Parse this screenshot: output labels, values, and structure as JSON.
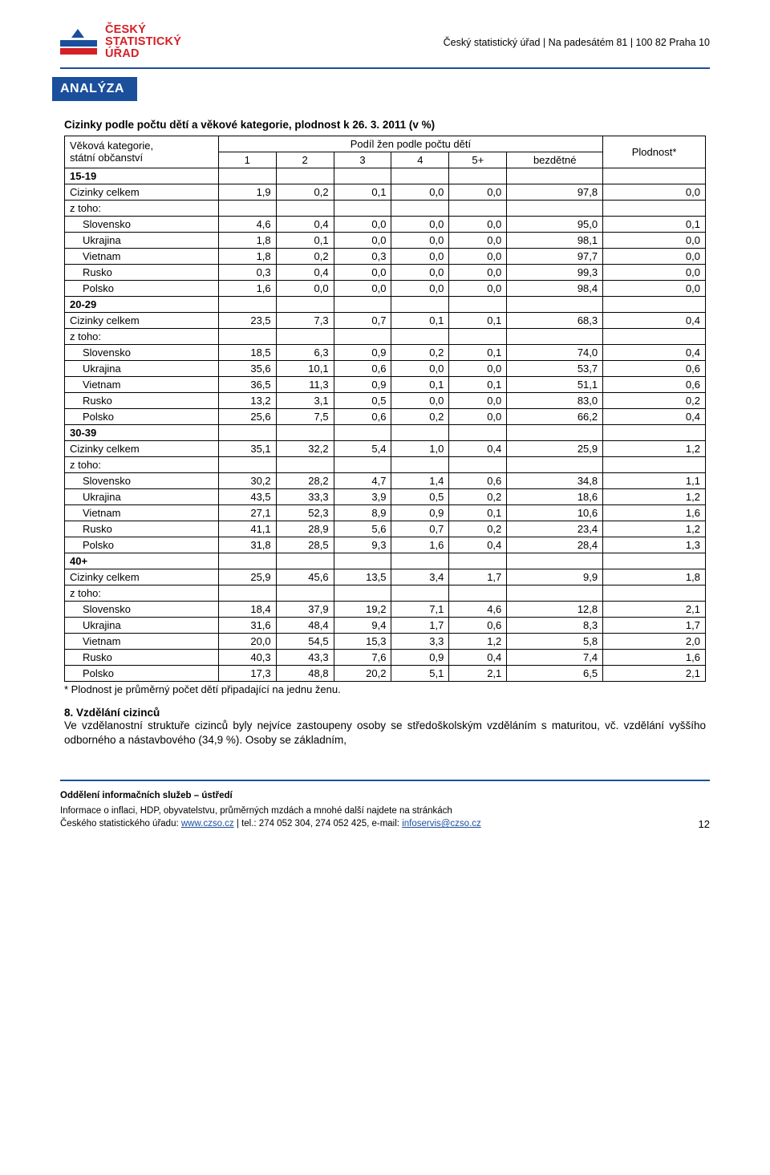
{
  "header": {
    "org_address": "Český statistický úřad | Na padesátém 81 | 100 82 Praha 10",
    "logo_line1": "ČESKÝ",
    "logo_line2": "STATISTICKÝ",
    "logo_line3": "ÚŘAD",
    "tag": "ANALÝZA",
    "logo_colors": {
      "blue": "#1b4f9c",
      "red": "#d42027"
    }
  },
  "table": {
    "title": "Cizinky podle počtu dětí a věkové kategorie, plodnost k 26. 3. 2011 (v %)",
    "header_rowcol": "Věková kategorie,\nstátní občanství",
    "header_group": "Podíl žen podle počtu dětí",
    "header_last": "Plodnost*",
    "subcols": [
      "1",
      "2",
      "3",
      "4",
      "5+",
      "bezdětné"
    ],
    "groups": [
      {
        "label": "15-19",
        "total": {
          "label": "Cizinky celkem",
          "vals": [
            "1,9",
            "0,2",
            "0,1",
            "0,0",
            "0,0",
            "97,8",
            "0,0"
          ]
        },
        "ztoho": "z toho:",
        "rows": [
          {
            "label": "Slovensko",
            "vals": [
              "4,6",
              "0,4",
              "0,0",
              "0,0",
              "0,0",
              "95,0",
              "0,1"
            ]
          },
          {
            "label": "Ukrajina",
            "vals": [
              "1,8",
              "0,1",
              "0,0",
              "0,0",
              "0,0",
              "98,1",
              "0,0"
            ]
          },
          {
            "label": "Vietnam",
            "vals": [
              "1,8",
              "0,2",
              "0,3",
              "0,0",
              "0,0",
              "97,7",
              "0,0"
            ]
          },
          {
            "label": "Rusko",
            "vals": [
              "0,3",
              "0,4",
              "0,0",
              "0,0",
              "0,0",
              "99,3",
              "0,0"
            ]
          },
          {
            "label": "Polsko",
            "vals": [
              "1,6",
              "0,0",
              "0,0",
              "0,0",
              "0,0",
              "98,4",
              "0,0"
            ]
          }
        ]
      },
      {
        "label": "20-29",
        "total": {
          "label": "Cizinky celkem",
          "vals": [
            "23,5",
            "7,3",
            "0,7",
            "0,1",
            "0,1",
            "68,3",
            "0,4"
          ]
        },
        "ztoho": "z toho:",
        "rows": [
          {
            "label": "Slovensko",
            "vals": [
              "18,5",
              "6,3",
              "0,9",
              "0,2",
              "0,1",
              "74,0",
              "0,4"
            ]
          },
          {
            "label": "Ukrajina",
            "vals": [
              "35,6",
              "10,1",
              "0,6",
              "0,0",
              "0,0",
              "53,7",
              "0,6"
            ]
          },
          {
            "label": "Vietnam",
            "vals": [
              "36,5",
              "11,3",
              "0,9",
              "0,1",
              "0,1",
              "51,1",
              "0,6"
            ]
          },
          {
            "label": "Rusko",
            "vals": [
              "13,2",
              "3,1",
              "0,5",
              "0,0",
              "0,0",
              "83,0",
              "0,2"
            ]
          },
          {
            "label": "Polsko",
            "vals": [
              "25,6",
              "7,5",
              "0,6",
              "0,2",
              "0,0",
              "66,2",
              "0,4"
            ]
          }
        ]
      },
      {
        "label": "30-39",
        "total": {
          "label": "Cizinky celkem",
          "vals": [
            "35,1",
            "32,2",
            "5,4",
            "1,0",
            "0,4",
            "25,9",
            "1,2"
          ]
        },
        "ztoho": "z toho:",
        "rows": [
          {
            "label": "Slovensko",
            "vals": [
              "30,2",
              "28,2",
              "4,7",
              "1,4",
              "0,6",
              "34,8",
              "1,1"
            ]
          },
          {
            "label": "Ukrajina",
            "vals": [
              "43,5",
              "33,3",
              "3,9",
              "0,5",
              "0,2",
              "18,6",
              "1,2"
            ]
          },
          {
            "label": "Vietnam",
            "vals": [
              "27,1",
              "52,3",
              "8,9",
              "0,9",
              "0,1",
              "10,6",
              "1,6"
            ]
          },
          {
            "label": "Rusko",
            "vals": [
              "41,1",
              "28,9",
              "5,6",
              "0,7",
              "0,2",
              "23,4",
              "1,2"
            ]
          },
          {
            "label": "Polsko",
            "vals": [
              "31,8",
              "28,5",
              "9,3",
              "1,6",
              "0,4",
              "28,4",
              "1,3"
            ]
          }
        ]
      },
      {
        "label": "40+",
        "total": {
          "label": "Cizinky celkem",
          "vals": [
            "25,9",
            "45,6",
            "13,5",
            "3,4",
            "1,7",
            "9,9",
            "1,8"
          ]
        },
        "ztoho": "z toho:",
        "rows": [
          {
            "label": "Slovensko",
            "vals": [
              "18,4",
              "37,9",
              "19,2",
              "7,1",
              "4,6",
              "12,8",
              "2,1"
            ]
          },
          {
            "label": "Ukrajina",
            "vals": [
              "31,6",
              "48,4",
              "9,4",
              "1,7",
              "0,6",
              "8,3",
              "1,7"
            ]
          },
          {
            "label": "Vietnam",
            "vals": [
              "20,0",
              "54,5",
              "15,3",
              "3,3",
              "1,2",
              "5,8",
              "2,0"
            ]
          },
          {
            "label": "Rusko",
            "vals": [
              "40,3",
              "43,3",
              "7,6",
              "0,9",
              "0,4",
              "7,4",
              "1,6"
            ]
          },
          {
            "label": "Polsko",
            "vals": [
              "17,3",
              "48,8",
              "20,2",
              "5,1",
              "2,1",
              "6,5",
              "2,1"
            ]
          }
        ]
      }
    ],
    "footnote": "* Plodnost je průměrný počet dětí připadající na jednu ženu.",
    "col_widths_pct": [
      24,
      9,
      9,
      9,
      9,
      9,
      15,
      16
    ]
  },
  "section": {
    "head": "8.  Vzdělání cizinců",
    "body": "Ve vzdělanostní struktuře cizinců byly nejvíce zastoupeny osoby se středoškolským vzděláním s maturitou, vč. vzdělání vyššího odborného a nástavbového (34,9 %). Osoby se základním,"
  },
  "footer": {
    "dept": "Oddělení informačních služeb – ústředí",
    "line2_a": "Informace o inflaci, HDP, obyvatelstvu, průměrných mzdách a mnohé další najdete na stránkách",
    "line3_a": "Českého statistického úřadu: ",
    "link1": "www.czso.cz",
    "sep": "   |   tel.: 274 052 304, 274 052 425, e-mail: ",
    "link2": "infoservis@czso.cz",
    "page": "12"
  }
}
